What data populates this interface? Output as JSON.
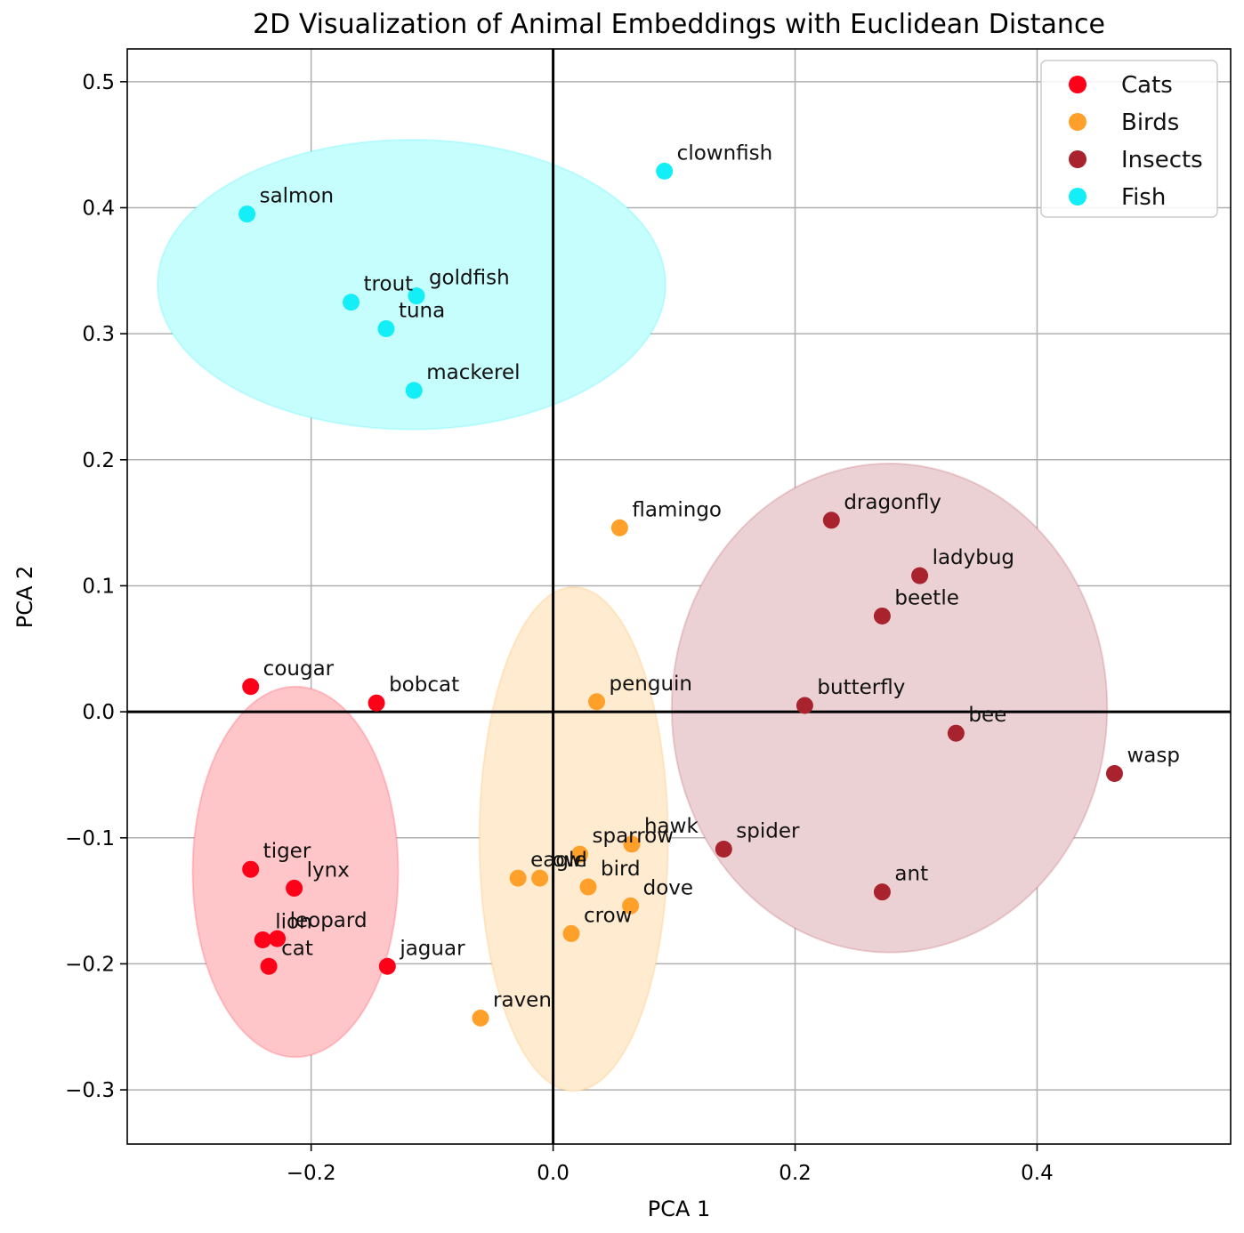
{
  "chart_data": {
    "type": "scatter",
    "title": "2D Visualization of Animal Embeddings with Euclidean Distance",
    "xlabel": "PCA 1",
    "ylabel": "PCA 2",
    "xlim": [
      -0.352,
      0.56
    ],
    "ylim": [
      -0.343,
      0.526
    ],
    "xticks": [
      {
        "value": -0.2,
        "label": "−0.2"
      },
      {
        "value": 0.0,
        "label": "0.0"
      },
      {
        "value": 0.2,
        "label": "0.2"
      },
      {
        "value": 0.4,
        "label": "0.4"
      }
    ],
    "yticks": [
      {
        "value": -0.3,
        "label": "−0.3"
      },
      {
        "value": -0.2,
        "label": "−0.2"
      },
      {
        "value": -0.1,
        "label": "−0.1"
      },
      {
        "value": 0.0,
        "label": "0.0"
      },
      {
        "value": 0.1,
        "label": "0.1"
      },
      {
        "value": 0.2,
        "label": "0.2"
      },
      {
        "value": 0.3,
        "label": "0.3"
      },
      {
        "value": 0.4,
        "label": "0.4"
      },
      {
        "value": 0.5,
        "label": "0.5"
      }
    ],
    "grid": true,
    "legend_position": "top-right",
    "series": [
      {
        "name": "Cats",
        "color": "#ff0019",
        "ellipse": {
          "cx": -0.213,
          "cy": -0.127,
          "rx": 0.085,
          "ry": 0.147,
          "fill": "#ffc6c9"
        },
        "points": [
          {
            "label": "cougar",
            "x": -0.25,
            "y": 0.02
          },
          {
            "label": "bobcat",
            "x": -0.146,
            "y": 0.007
          },
          {
            "label": "tiger",
            "x": -0.25,
            "y": -0.125
          },
          {
            "label": "lynx",
            "x": -0.214,
            "y": -0.14
          },
          {
            "label": "lion",
            "x": -0.24,
            "y": -0.181
          },
          {
            "label": "leopard",
            "x": -0.228,
            "y": -0.18
          },
          {
            "label": "cat",
            "x": -0.235,
            "y": -0.202
          },
          {
            "label": "jaguar",
            "x": -0.137,
            "y": -0.202
          }
        ]
      },
      {
        "name": "Birds",
        "color": "#ffa02b",
        "ellipse": {
          "cx": 0.017,
          "cy": -0.101,
          "rx": 0.078,
          "ry": 0.2,
          "fill": "#ffebcf"
        },
        "points": [
          {
            "label": "flamingo",
            "x": 0.055,
            "y": 0.146
          },
          {
            "label": "penguin",
            "x": 0.036,
            "y": 0.008
          },
          {
            "label": "hawk",
            "x": 0.065,
            "y": -0.105
          },
          {
            "label": "sparrow",
            "x": 0.022,
            "y": -0.113
          },
          {
            "label": "eagle",
            "x": -0.029,
            "y": -0.132
          },
          {
            "label": "owl",
            "x": -0.011,
            "y": -0.132
          },
          {
            "label": "bird",
            "x": 0.029,
            "y": -0.139
          },
          {
            "label": "dove",
            "x": 0.064,
            "y": -0.154
          },
          {
            "label": "crow",
            "x": 0.015,
            "y": -0.176
          },
          {
            "label": "raven",
            "x": -0.06,
            "y": -0.243
          }
        ]
      },
      {
        "name": "Insects",
        "color": "#a8232d",
        "ellipse": {
          "cx": 0.278,
          "cy": 0.003,
          "rx": 0.18,
          "ry": 0.194,
          "fill": "#ebd1d4"
        },
        "points": [
          {
            "label": "dragonfly",
            "x": 0.23,
            "y": 0.152
          },
          {
            "label": "ladybug",
            "x": 0.303,
            "y": 0.108
          },
          {
            "label": "beetle",
            "x": 0.272,
            "y": 0.076
          },
          {
            "label": "butterfly",
            "x": 0.208,
            "y": 0.005
          },
          {
            "label": "bee",
            "x": 0.333,
            "y": -0.017
          },
          {
            "label": "wasp",
            "x": 0.464,
            "y": -0.049
          },
          {
            "label": "spider",
            "x": 0.141,
            "y": -0.109
          },
          {
            "label": "ant",
            "x": 0.272,
            "y": -0.143
          }
        ]
      },
      {
        "name": "Fish",
        "color": "#14eef7",
        "ellipse": {
          "cx": -0.117,
          "cy": 0.339,
          "rx": 0.21,
          "ry": 0.115,
          "fill": "#c6fdfd"
        },
        "points": [
          {
            "label": "clownfish",
            "x": 0.092,
            "y": 0.429
          },
          {
            "label": "salmon",
            "x": -0.253,
            "y": 0.395
          },
          {
            "label": "trout",
            "x": -0.167,
            "y": 0.325
          },
          {
            "label": "goldfish",
            "x": -0.113,
            "y": 0.33
          },
          {
            "label": "tuna",
            "x": -0.138,
            "y": 0.304
          },
          {
            "label": "mackerel",
            "x": -0.115,
            "y": 0.255
          }
        ]
      }
    ]
  }
}
